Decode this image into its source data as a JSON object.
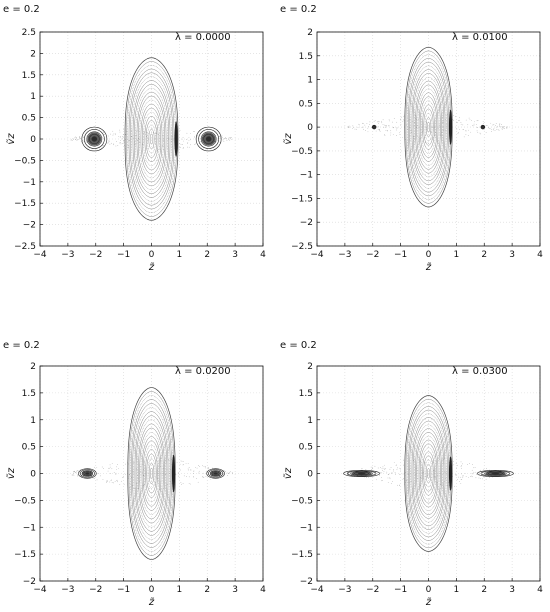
{
  "chart_data": [
    {
      "type": "scatter",
      "title": "e = 0.2",
      "annotation": "λ = 0.0000",
      "xlabel": "z̃",
      "ylabel": "ṽz",
      "xlim": [
        -4,
        4
      ],
      "ylim": [
        -2.5,
        2.5
      ],
      "xticks": [
        -4,
        -3,
        -2,
        -1,
        0,
        1,
        2,
        3,
        4
      ],
      "yticks": [
        -2.5,
        -2,
        -1.5,
        -1,
        -0.5,
        0,
        0.5,
        1,
        1.5,
        2,
        2.5
      ],
      "grid": true,
      "central_island": {
        "x_half_width": 0.95,
        "y_half_height": 1.9
      },
      "side_islands": [
        {
          "x": -2.05,
          "y": 0,
          "x_half_width": 0.45,
          "y_half_height": 0.28
        },
        {
          "x": 2.05,
          "y": 0,
          "x_half_width": 0.45,
          "y_half_height": 0.28
        }
      ]
    },
    {
      "type": "scatter",
      "title": "e = 0.2",
      "annotation": "λ = 0.0100",
      "xlabel": "z̃",
      "ylabel": "ṽz",
      "xlim": [
        -4,
        4
      ],
      "ylim": [
        -2.5,
        2
      ],
      "xticks": [
        -4,
        -3,
        -2,
        -1,
        0,
        1,
        2,
        3,
        4
      ],
      "yticks": [
        -2.5,
        -2,
        -1.5,
        -1,
        -0.5,
        0,
        0.5,
        1,
        1.5,
        2
      ],
      "grid": true,
      "central_island": {
        "x_half_width": 0.85,
        "y_half_height": 1.68
      },
      "side_islands": [
        {
          "x": -1.95,
          "y": 0,
          "x_half_width": 0.07,
          "y_half_height": 0.04
        },
        {
          "x": 1.95,
          "y": 0,
          "x_half_width": 0.07,
          "y_half_height": 0.04
        }
      ]
    },
    {
      "type": "scatter",
      "title": "e = 0.2",
      "annotation": "λ = 0.0200",
      "xlabel": "z̃",
      "ylabel": "ṽz",
      "xlim": [
        -4,
        4
      ],
      "ylim": [
        -2,
        2
      ],
      "xticks": [
        -4,
        -3,
        -2,
        -1,
        0,
        1,
        2,
        3,
        4
      ],
      "yticks": [
        -2,
        -1.5,
        -1,
        -0.5,
        0,
        0.5,
        1,
        1.5,
        2
      ],
      "grid": true,
      "central_island": {
        "x_half_width": 0.85,
        "y_half_height": 1.6
      },
      "side_islands": [
        {
          "x": -2.3,
          "y": 0,
          "x_half_width": 0.32,
          "y_half_height": 0.09
        },
        {
          "x": 2.3,
          "y": 0,
          "x_half_width": 0.32,
          "y_half_height": 0.09
        }
      ]
    },
    {
      "type": "scatter",
      "title": "e = 0.2",
      "annotation": "λ = 0.0300",
      "xlabel": "z̃",
      "ylabel": "ṽz",
      "xlim": [
        -4,
        4
      ],
      "ylim": [
        -2,
        2
      ],
      "xticks": [
        -4,
        -3,
        -2,
        -1,
        0,
        1,
        2,
        3,
        4
      ],
      "yticks": [
        -2,
        -1.5,
        -1,
        -0.5,
        0,
        0.5,
        1,
        1.5,
        2
      ],
      "grid": true,
      "central_island": {
        "x_half_width": 0.85,
        "y_half_height": 1.45
      },
      "side_islands": [
        {
          "x": -2.4,
          "y": 0,
          "x_half_width": 0.65,
          "y_half_height": 0.06
        },
        {
          "x": 2.4,
          "y": 0,
          "x_half_width": 0.65,
          "y_half_height": 0.06
        }
      ]
    }
  ]
}
